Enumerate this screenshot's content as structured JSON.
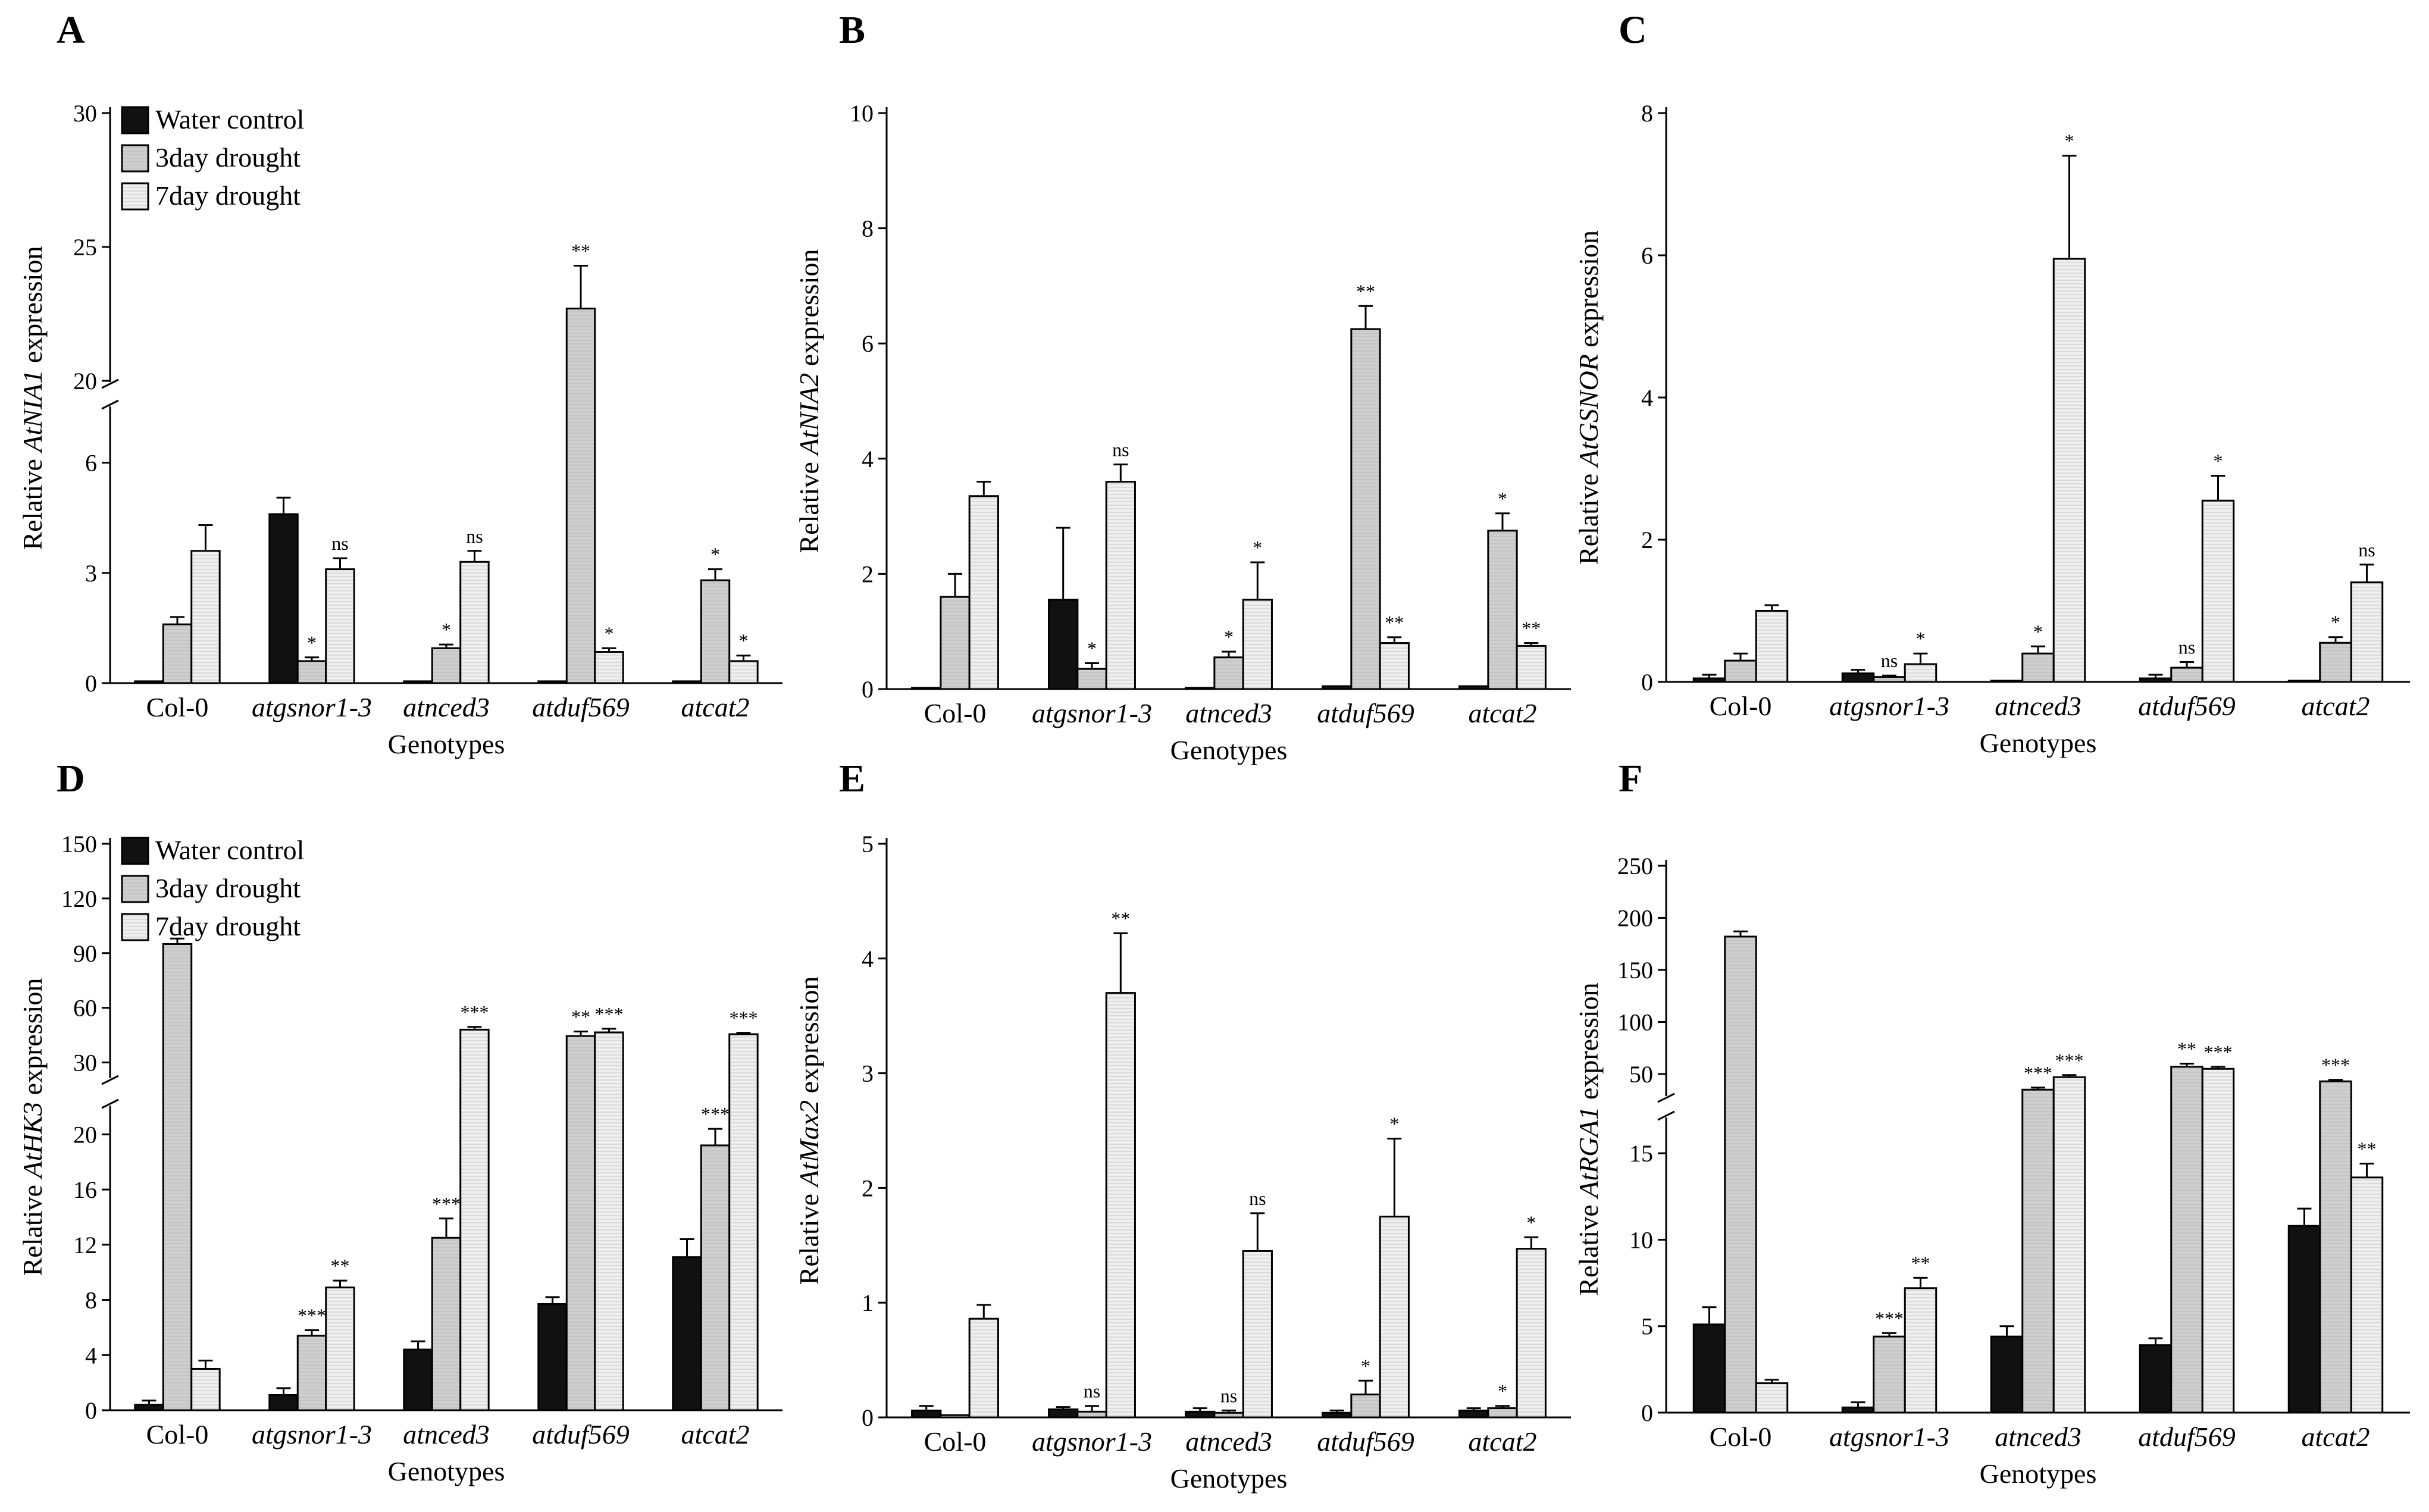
{
  "figure": {
    "legend_labels": [
      "Water control",
      "3day drought",
      "7day drought"
    ],
    "series_colors": [
      "#111111",
      "#cfcfcf",
      "#efefef"
    ]
  },
  "chart_data": [
    {
      "id": "A",
      "type": "bar",
      "panel_label": "A",
      "ylabel_prefix": "Relative ",
      "ylabel_gene": "AtNIA1",
      "ylabel_suffix": " expression",
      "xlabel": "Genotypes",
      "categories": [
        "Col-0",
        "atgsnor1-3",
        "atnced3",
        "atduf569",
        "atcat2"
      ],
      "italic_categories": [
        false,
        true,
        true,
        true,
        true
      ],
      "legend": true,
      "ylim": [
        0,
        30
      ],
      "axis_break": {
        "lower_max": 7.5,
        "upper_min": 20,
        "upper_max": 30
      },
      "yticks": [
        0,
        3,
        6,
        20,
        25,
        30
      ],
      "series": [
        {
          "name": "Water control",
          "values": [
            0.05,
            4.6,
            0.05,
            0.05,
            0.05
          ],
          "errors": [
            0,
            0.45,
            0,
            0,
            0
          ],
          "sig": [
            "",
            "",
            "",
            "",
            ""
          ]
        },
        {
          "name": "3day drought",
          "values": [
            1.6,
            0.6,
            0.95,
            22.7,
            2.8
          ],
          "errors": [
            0.2,
            0.1,
            0.1,
            1.6,
            0.3
          ],
          "sig": [
            "",
            "*",
            "*",
            "**",
            "*"
          ]
        },
        {
          "name": "7day drought",
          "values": [
            3.6,
            3.1,
            3.3,
            0.85,
            0.6
          ],
          "errors": [
            0.7,
            0.3,
            0.3,
            0.1,
            0.15
          ],
          "sig": [
            "",
            "ns",
            "ns",
            "*",
            "*"
          ]
        }
      ]
    },
    {
      "id": "B",
      "type": "bar",
      "panel_label": "B",
      "ylabel_prefix": "Relative ",
      "ylabel_gene": "AtNIA2",
      "ylabel_suffix": " expression",
      "xlabel": "Genotypes",
      "categories": [
        "Col-0",
        "atgsnor1-3",
        "atnced3",
        "atduf569",
        "atcat2"
      ],
      "italic_categories": [
        false,
        true,
        true,
        true,
        true
      ],
      "legend": false,
      "ylim": [
        0,
        10
      ],
      "yticks": [
        0,
        2,
        4,
        6,
        8,
        10
      ],
      "series": [
        {
          "name": "Water control",
          "values": [
            0,
            1.55,
            0,
            0.05,
            0.05
          ],
          "errors": [
            0,
            1.25,
            0,
            0,
            0
          ],
          "sig": [
            "",
            "",
            "",
            "",
            ""
          ]
        },
        {
          "name": "3day drought",
          "values": [
            1.6,
            0.35,
            0.55,
            6.25,
            2.75
          ],
          "errors": [
            0.4,
            0.1,
            0.1,
            0.4,
            0.3
          ],
          "sig": [
            "",
            "*",
            "*",
            "**",
            "*"
          ]
        },
        {
          "name": "7day drought",
          "values": [
            3.35,
            3.6,
            1.55,
            0.8,
            0.75
          ],
          "errors": [
            0.25,
            0.3,
            0.65,
            0.1,
            0.05
          ],
          "sig": [
            "",
            "ns",
            "*",
            "**",
            "**"
          ]
        }
      ]
    },
    {
      "id": "C",
      "type": "bar",
      "panel_label": "C",
      "ylabel_prefix": "Relative ",
      "ylabel_gene": "AtGSNOR",
      "ylabel_suffix": " expression",
      "xlabel": "Genotypes",
      "categories": [
        "Col-0",
        "atgsnor1-3",
        "atnced3",
        "atduf569",
        "atcat2"
      ],
      "italic_categories": [
        false,
        true,
        true,
        true,
        true
      ],
      "legend": false,
      "ylim": [
        0,
        8
      ],
      "yticks": [
        0,
        2,
        4,
        6,
        8
      ],
      "series": [
        {
          "name": "Water control",
          "values": [
            0.05,
            0.12,
            0,
            0.05,
            0
          ],
          "errors": [
            0.05,
            0.05,
            0,
            0.05,
            0
          ],
          "sig": [
            "",
            "",
            "",
            "",
            ""
          ]
        },
        {
          "name": "3day drought",
          "values": [
            0.3,
            0.07,
            0.4,
            0.2,
            0.55
          ],
          "errors": [
            0.1,
            0.02,
            0.1,
            0.08,
            0.08
          ],
          "sig": [
            "",
            "ns",
            "*",
            "ns",
            "*"
          ]
        },
        {
          "name": "7day drought",
          "values": [
            1.0,
            0.25,
            5.95,
            2.55,
            1.4
          ],
          "errors": [
            0.08,
            0.15,
            1.45,
            0.35,
            0.25
          ],
          "sig": [
            "",
            "*",
            "*",
            "*",
            "ns"
          ]
        }
      ]
    },
    {
      "id": "D",
      "type": "bar",
      "panel_label": "D",
      "ylabel_prefix": "Relative ",
      "ylabel_gene": "AtHK3",
      "ylabel_suffix": " expression",
      "xlabel": "Genotypes",
      "categories": [
        "Col-0",
        "atgsnor1-3",
        "atnced3",
        "atduf569",
        "atcat2"
      ],
      "italic_categories": [
        false,
        true,
        true,
        true,
        true
      ],
      "legend": true,
      "ylim": [
        0,
        150
      ],
      "axis_break": {
        "lower_max": 22,
        "upper_min": 22,
        "upper_max": 150
      },
      "yticks": [
        0,
        4,
        8,
        12,
        16,
        20,
        30,
        60,
        90,
        120,
        150
      ],
      "series": [
        {
          "name": "Water control",
          "values": [
            0.4,
            1.1,
            4.4,
            7.7,
            11.1
          ],
          "errors": [
            0.3,
            0.5,
            0.6,
            0.5,
            1.3
          ],
          "sig": [
            "",
            "",
            "",
            "",
            ""
          ]
        },
        {
          "name": "3day drought",
          "values": [
            95,
            5.4,
            12.5,
            44.5,
            19.2
          ],
          "errors": [
            3,
            0.4,
            1.4,
            2.5,
            1.2
          ],
          "sig": [
            "",
            "***",
            "***",
            "**",
            "***"
          ]
        },
        {
          "name": "7day drought",
          "values": [
            3.0,
            8.9,
            48,
            46.5,
            45.5
          ],
          "errors": [
            0.6,
            0.5,
            1.5,
            2,
            0.8
          ],
          "sig": [
            "",
            "**",
            "***",
            "***",
            "***"
          ]
        }
      ]
    },
    {
      "id": "E",
      "type": "bar",
      "panel_label": "E",
      "ylabel_prefix": "Relative ",
      "ylabel_gene": "AtMax2",
      "ylabel_suffix": " expression",
      "xlabel": "Genotypes",
      "categories": [
        "Col-0",
        "atgsnor1-3",
        "atnced3",
        "atduf569",
        "atcat2"
      ],
      "italic_categories": [
        false,
        true,
        true,
        true,
        true
      ],
      "legend": false,
      "ylim": [
        0,
        5
      ],
      "yticks": [
        0,
        1,
        2,
        3,
        4,
        5
      ],
      "series": [
        {
          "name": "Water control",
          "values": [
            0.06,
            0.07,
            0.05,
            0.04,
            0.06
          ],
          "errors": [
            0.04,
            0.02,
            0.03,
            0.02,
            0.02
          ],
          "sig": [
            "",
            "",
            "",
            "",
            ""
          ]
        },
        {
          "name": "3day drought",
          "values": [
            0.02,
            0.05,
            0.04,
            0.2,
            0.08
          ],
          "errors": [
            0,
            0.05,
            0.02,
            0.12,
            0.02
          ],
          "sig": [
            "",
            "ns",
            "ns",
            "*",
            "*"
          ]
        },
        {
          "name": "7day drought",
          "values": [
            0.86,
            3.7,
            1.45,
            1.75,
            1.47
          ],
          "errors": [
            0.12,
            0.52,
            0.33,
            0.68,
            0.1
          ],
          "sig": [
            "",
            "**",
            "ns",
            "*",
            "*"
          ]
        }
      ]
    },
    {
      "id": "F",
      "type": "bar",
      "panel_label": "F",
      "ylabel_prefix": "Relative ",
      "ylabel_gene": "AtRGA1",
      "ylabel_suffix": " expression",
      "xlabel": "Genotypes",
      "categories": [
        "Col-0",
        "atgsnor1-3",
        "atnced3",
        "atduf569",
        "atcat2"
      ],
      "italic_categories": [
        false,
        true,
        true,
        true,
        true
      ],
      "legend": false,
      "ylim": [
        0,
        250
      ],
      "axis_break": {
        "lower_max": 17,
        "upper_min": 30,
        "upper_max": 250
      },
      "yticks": [
        0,
        5,
        10,
        15,
        50,
        100,
        150,
        200,
        250
      ],
      "series": [
        {
          "name": "Water control",
          "values": [
            5.1,
            0.3,
            4.4,
            3.9,
            10.8
          ],
          "errors": [
            1.0,
            0.3,
            0.6,
            0.4,
            1.0
          ],
          "sig": [
            "",
            "",
            "",
            "",
            ""
          ]
        },
        {
          "name": "3day drought",
          "values": [
            182,
            4.4,
            35,
            57,
            43
          ],
          "errors": [
            5,
            0.2,
            2,
            3,
            1.5
          ],
          "sig": [
            "",
            "***",
            "***",
            "**",
            "***"
          ]
        },
        {
          "name": "7day drought",
          "values": [
            1.7,
            7.2,
            47,
            55,
            13.6
          ],
          "errors": [
            0.2,
            0.6,
            2,
            2,
            0.8
          ],
          "sig": [
            "",
            "**",
            "***",
            "***",
            "**"
          ]
        }
      ]
    }
  ]
}
